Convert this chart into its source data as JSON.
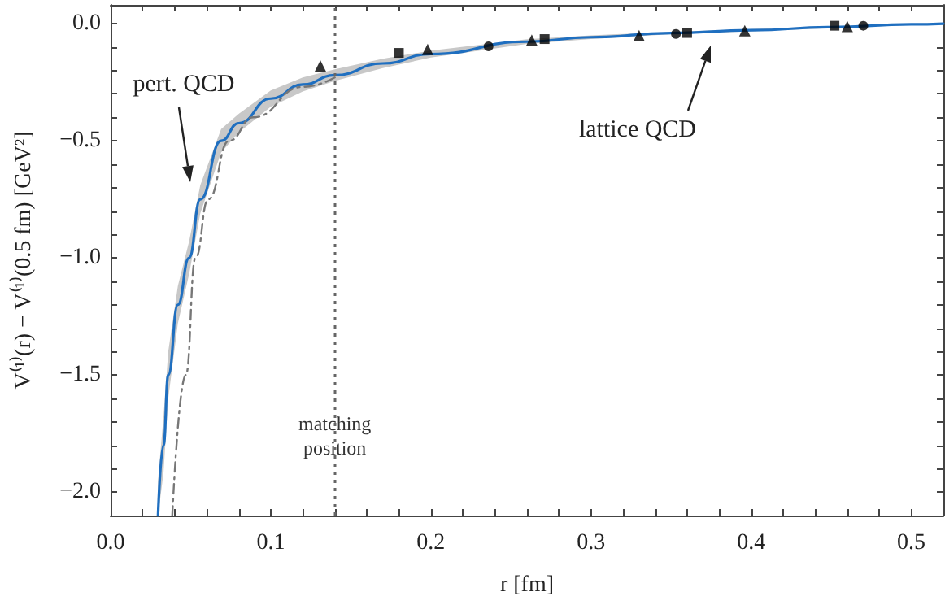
{
  "chart_data": {
    "type": "line",
    "xlabel": "r [fm]",
    "ylabel": "V⁽¹⁾(r) − V⁽¹⁾(0.5 fm) [GeV²]",
    "xlim": [
      0,
      0.52
    ],
    "ylim": [
      -2.1,
      0.08
    ],
    "xticks": [
      {
        "value": 0,
        "label": "0.0"
      },
      {
        "value": 0.02,
        "label": null
      },
      {
        "value": 0.04,
        "label": null
      },
      {
        "value": 0.06,
        "label": null
      },
      {
        "value": 0.08,
        "label": null
      },
      {
        "value": 0.1,
        "label": "0.1"
      },
      {
        "value": 0.12,
        "label": null
      },
      {
        "value": 0.14,
        "label": null
      },
      {
        "value": 0.16,
        "label": null
      },
      {
        "value": 0.18,
        "label": null
      },
      {
        "value": 0.2,
        "label": "0.2"
      },
      {
        "value": 0.22,
        "label": null
      },
      {
        "value": 0.24,
        "label": null
      },
      {
        "value": 0.26,
        "label": null
      },
      {
        "value": 0.28,
        "label": null
      },
      {
        "value": 0.3,
        "label": "0.3"
      },
      {
        "value": 0.32,
        "label": null
      },
      {
        "value": 0.34,
        "label": null
      },
      {
        "value": 0.36,
        "label": null
      },
      {
        "value": 0.38,
        "label": null
      },
      {
        "value": 0.4,
        "label": "0.4"
      },
      {
        "value": 0.42,
        "label": null
      },
      {
        "value": 0.44,
        "label": null
      },
      {
        "value": 0.46,
        "label": null
      },
      {
        "value": 0.48,
        "label": null
      },
      {
        "value": 0.5,
        "label": "0.5"
      }
    ],
    "yticks": [
      {
        "value": -2,
        "label": "−2.0"
      },
      {
        "value": -1.9,
        "label": null
      },
      {
        "value": -1.8,
        "label": null
      },
      {
        "value": -1.7,
        "label": null
      },
      {
        "value": -1.6,
        "label": null
      },
      {
        "value": -1.5,
        "label": "−1.5"
      },
      {
        "value": -1.4,
        "label": null
      },
      {
        "value": -1.3,
        "label": null
      },
      {
        "value": -1.2,
        "label": null
      },
      {
        "value": -1.1,
        "label": null
      },
      {
        "value": -1,
        "label": "−1.0"
      },
      {
        "value": -0.9,
        "label": null
      },
      {
        "value": -0.8,
        "label": null
      },
      {
        "value": -0.7,
        "label": null
      },
      {
        "value": -0.6,
        "label": null
      },
      {
        "value": -0.5,
        "label": "−0.5"
      },
      {
        "value": -0.4,
        "label": null
      },
      {
        "value": -0.3,
        "label": null
      },
      {
        "value": -0.2,
        "label": null
      },
      {
        "value": -0.1,
        "label": null
      },
      {
        "value": 0,
        "label": "0.0"
      }
    ],
    "grid": false,
    "series": [
      {
        "color": "#1f6fc0",
        "line_style": "solid",
        "marker": "none",
        "x": [
          0.0296,
          0.033,
          0.036,
          0.042,
          0.049,
          0.056,
          0.069,
          0.08,
          0.1,
          0.12,
          0.14,
          0.17,
          0.2,
          0.26,
          0.3,
          0.35,
          0.4,
          0.45,
          0.5,
          0.52
        ],
        "values": [
          -2.1,
          -1.8,
          -1.5,
          -1.2,
          -1.0,
          -0.75,
          -0.5,
          -0.425,
          -0.32,
          -0.26,
          -0.22,
          -0.17,
          -0.13,
          -0.077,
          -0.058,
          -0.04,
          -0.028,
          -0.015,
          -0.003,
          0.0
        ],
        "lower": [
          -2.1,
          -1.92,
          -1.6,
          -1.28,
          -1.07,
          -0.81,
          -0.55,
          -0.465,
          -0.355,
          -0.29,
          -0.245,
          -0.19,
          -0.145,
          -0.087,
          -0.066,
          -0.045,
          -0.033,
          -0.019,
          -0.006,
          -0.002
        ],
        "upper": [
          -1.95,
          -1.68,
          -1.4,
          -1.12,
          -0.93,
          -0.69,
          -0.45,
          -0.385,
          -0.285,
          -0.23,
          -0.195,
          -0.15,
          -0.115,
          -0.067,
          -0.05,
          -0.035,
          -0.023,
          -0.011,
          0.0,
          0.002
        ]
      },
      {
        "color": "#777777",
        "line_style": "dashed",
        "marker": "none",
        "x": [
          0.0385,
          0.047,
          0.053,
          0.061,
          0.074,
          0.089,
          0.12,
          0.14
        ],
        "values": [
          -2.1,
          -1.5,
          -1.0,
          -0.75,
          -0.5,
          -0.4,
          -0.27,
          -0.23
        ]
      },
      {
        "type": "scatter",
        "color": "#000000",
        "marker": "circle",
        "x": [
          0.236,
          0.353,
          0.47
        ],
        "values": [
          -0.097,
          -0.044,
          -0.009
        ]
      },
      {
        "type": "scatter",
        "color": "#000000",
        "marker": "square",
        "x": [
          0.18,
          0.271,
          0.36,
          0.452
        ],
        "values": [
          -0.125,
          -0.066,
          -0.04,
          -0.009
        ]
      },
      {
        "type": "scatter",
        "color": "#000000",
        "marker": "triangle",
        "x": [
          0.131,
          0.198,
          0.263,
          0.33,
          0.396,
          0.46
        ],
        "values": [
          -0.18,
          -0.11,
          -0.07,
          -0.051,
          -0.03,
          -0.012
        ]
      }
    ],
    "ref_lines": [
      {
        "axis": "x",
        "value": 0.14,
        "label": "matching position",
        "color": "#666666",
        "line_style": "dotted"
      }
    ],
    "annotations": [
      "pert. QCD",
      "lattice QCD"
    ]
  }
}
